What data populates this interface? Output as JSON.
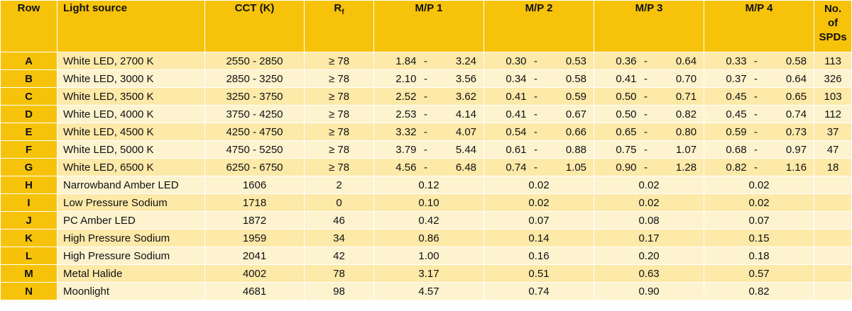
{
  "headers": {
    "row": "Row",
    "source": "Light source",
    "cct": "CCT (K)",
    "rf_main": "R",
    "rf_sub": "f",
    "mp1": "M/P 1",
    "mp2": "M/P 2",
    "mp3": "M/P 3",
    "mp4": "M/P 4",
    "n1": "No.",
    "n2": "of",
    "n3": "SPDs"
  },
  "ranged": [
    {
      "id": "A",
      "source": "White LED, 2700 K",
      "cct": "2550 - 2850",
      "rf": "≥ 78",
      "mp1": [
        "1.84",
        "3.24"
      ],
      "mp2": [
        "0.30",
        "0.53"
      ],
      "mp3": [
        "0.36",
        "0.64"
      ],
      "mp4": [
        "0.33",
        "0.58"
      ],
      "n": "113"
    },
    {
      "id": "B",
      "source": "White LED, 3000 K",
      "cct": "2850 - 3250",
      "rf": "≥ 78",
      "mp1": [
        "2.10",
        "3.56"
      ],
      "mp2": [
        "0.34",
        "0.58"
      ],
      "mp3": [
        "0.41",
        "0.70"
      ],
      "mp4": [
        "0.37",
        "0.64"
      ],
      "n": "326"
    },
    {
      "id": "C",
      "source": "White LED, 3500 K",
      "cct": "3250 - 3750",
      "rf": "≥ 78",
      "mp1": [
        "2.52",
        "3.62"
      ],
      "mp2": [
        "0.41",
        "0.59"
      ],
      "mp3": [
        "0.50",
        "0.71"
      ],
      "mp4": [
        "0.45",
        "0.65"
      ],
      "n": "103"
    },
    {
      "id": "D",
      "source": "White LED, 4000 K",
      "cct": "3750 - 4250",
      "rf": "≥ 78",
      "mp1": [
        "2.53",
        "4.14"
      ],
      "mp2": [
        "0.41",
        "0.67"
      ],
      "mp3": [
        "0.50",
        "0.82"
      ],
      "mp4": [
        "0.45",
        "0.74"
      ],
      "n": "112"
    },
    {
      "id": "E",
      "source": "White LED, 4500 K",
      "cct": "4250 - 4750",
      "rf": "≥ 78",
      "mp1": [
        "3.32",
        "4.07"
      ],
      "mp2": [
        "0.54",
        "0.66"
      ],
      "mp3": [
        "0.65",
        "0.80"
      ],
      "mp4": [
        "0.59",
        "0.73"
      ],
      "n": "37"
    },
    {
      "id": "F",
      "source": "White LED, 5000 K",
      "cct": "4750 - 5250",
      "rf": "≥ 78",
      "mp1": [
        "3.79",
        "5.44"
      ],
      "mp2": [
        "0.61",
        "0.88"
      ],
      "mp3": [
        "0.75",
        "1.07"
      ],
      "mp4": [
        "0.68",
        "0.97"
      ],
      "n": "47"
    },
    {
      "id": "G",
      "source": "White LED, 6500 K",
      "cct": "6250 - 6750",
      "rf": "≥ 78",
      "mp1": [
        "4.56",
        "6.48"
      ],
      "mp2": [
        "0.74",
        "1.05"
      ],
      "mp3": [
        "0.90",
        "1.28"
      ],
      "mp4": [
        "0.82",
        "1.16"
      ],
      "n": "18"
    }
  ],
  "single": [
    {
      "id": "H",
      "source": "Narrowband Amber LED",
      "cct": "1606",
      "rf": "2",
      "mp1": "0.12",
      "mp2": "0.02",
      "mp3": "0.02",
      "mp4": "0.02",
      "n": ""
    },
    {
      "id": "I",
      "source": "Low Pressure Sodium",
      "cct": "1718",
      "rf": "0",
      "mp1": "0.10",
      "mp2": "0.02",
      "mp3": "0.02",
      "mp4": "0.02",
      "n": ""
    },
    {
      "id": "J",
      "source": "PC Amber LED",
      "cct": "1872",
      "rf": "46",
      "mp1": "0.42",
      "mp2": "0.07",
      "mp3": "0.08",
      "mp4": "0.07",
      "n": ""
    },
    {
      "id": "K",
      "source": "High Pressure Sodium",
      "cct": "1959",
      "rf": "34",
      "mp1": "0.86",
      "mp2": "0.14",
      "mp3": "0.17",
      "mp4": "0.15",
      "n": ""
    },
    {
      "id": "L",
      "source": "High Pressure Sodium",
      "cct": "2041",
      "rf": "42",
      "mp1": "1.00",
      "mp2": "0.16",
      "mp3": "0.20",
      "mp4": "0.18",
      "n": ""
    },
    {
      "id": "M",
      "source": "Metal Halide",
      "cct": "4002",
      "rf": "78",
      "mp1": "3.17",
      "mp2": "0.51",
      "mp3": "0.63",
      "mp4": "0.57",
      "n": ""
    },
    {
      "id": "N",
      "source": "Moonlight",
      "cct": "4681",
      "rf": "98",
      "mp1": "4.57",
      "mp2": "0.74",
      "mp3": "0.90",
      "mp4": "0.82",
      "n": ""
    }
  ],
  "range_separator": "-",
  "colors": {
    "header": "#f7c30a",
    "row_odd": "#fde9a8",
    "row_even": "#fef3cf"
  }
}
